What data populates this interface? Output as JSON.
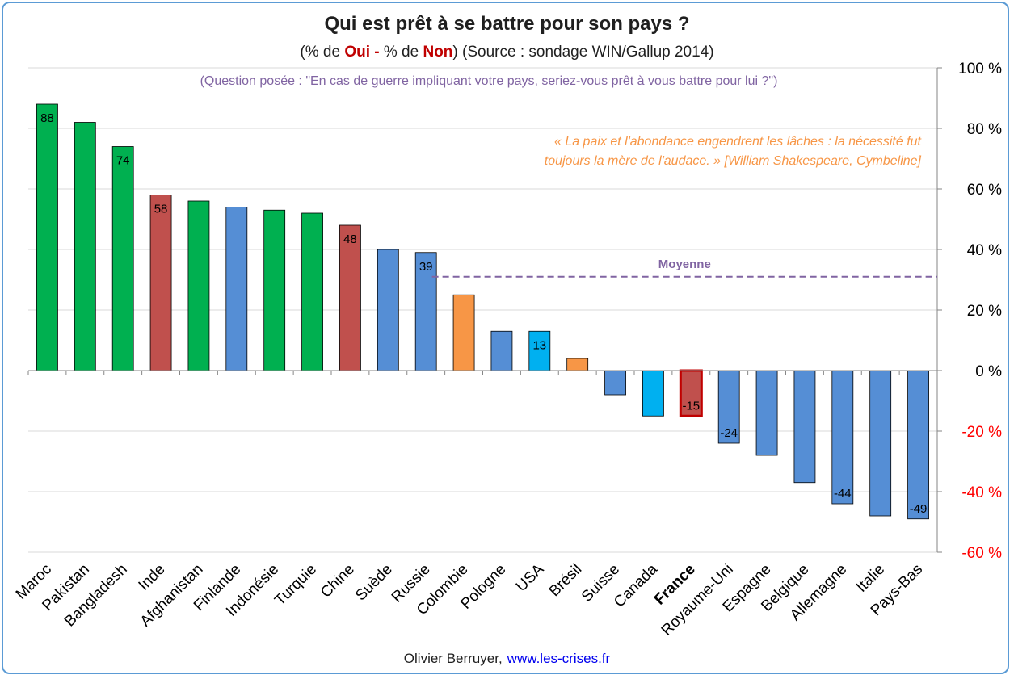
{
  "title": "Qui est prêt à se battre pour son pays ?",
  "subtitle": {
    "pre": "(% de ",
    "oui": "Oui -",
    "mid": " % de ",
    "non": "Non",
    "post": ") (Source : sondage WIN/Gallup 2014)"
  },
  "question": "(Question posée : \"En cas de guerre impliquant votre pays, seriez-vous prêt à vous battre pour lui ?\")",
  "quote": {
    "line1": "« La paix et l'abondance engendrent les lâches : la nécessité fut",
    "line2": "toujours la mère de l'audace. » [William Shakespeare, Cymbeline]"
  },
  "footer": {
    "author": "Olivier Berruyer,",
    "link": "www.les-crises.fr"
  },
  "colors": {
    "green": "#00b050",
    "red": "#c0504d",
    "blue": "#558ed5",
    "orange": "#f79646",
    "cyan": "#00b0f0",
    "france_border": "#c00000",
    "average": "#8064a2",
    "negative_tick": "#ff0000"
  },
  "chart_data": {
    "type": "bar",
    "categories": [
      "Maroc",
      "Pakistan",
      "Bangladesh",
      "Inde",
      "Afghanistan",
      "Finlande",
      "Indonésie",
      "Turquie",
      "Chine",
      "Suède",
      "Russie",
      "Colombie",
      "Pologne",
      "USA",
      "Brésil",
      "Suisse",
      "Canada",
      "France",
      "Royaume-Uni",
      "Espagne",
      "Belgique",
      "Allemagne",
      "Italie",
      "Pays-Bas"
    ],
    "values": [
      88,
      82,
      74,
      58,
      56,
      54,
      53,
      52,
      48,
      40,
      39,
      25,
      13,
      13,
      4,
      -8,
      -15,
      -15,
      -24,
      -28,
      -37,
      -44,
      -48,
      -49
    ],
    "bar_colors": [
      "green",
      "green",
      "green",
      "red",
      "green",
      "blue",
      "green",
      "green",
      "red",
      "blue",
      "blue",
      "orange",
      "blue",
      "cyan",
      "orange",
      "blue",
      "cyan",
      "red",
      "blue",
      "blue",
      "blue",
      "blue",
      "blue",
      "blue"
    ],
    "highlighted_category": "France",
    "data_labels": {
      "Maroc": "88",
      "Bangladesh": "74",
      "Inde": "58",
      "Chine": "48",
      "Russie": "39",
      "USA": "13",
      "France": "-15",
      "Royaume-Uni": "-24",
      "Allemagne": "-44",
      "Pays-Bas": "-49"
    },
    "yaxis": {
      "position": "right",
      "ylim": [
        -60,
        100
      ],
      "ticks": [
        100,
        80,
        60,
        40,
        20,
        0,
        -20,
        -40,
        -60
      ],
      "tick_labels": [
        "100 %",
        "80 %",
        "60 %",
        "40 %",
        "20 %",
        "0 %",
        "-20 %",
        "-40 %",
        "-60 %"
      ]
    },
    "average": {
      "label": "Moyenne",
      "value": 31,
      "start_category": "Colombie"
    },
    "grid": true,
    "legend": "none"
  }
}
